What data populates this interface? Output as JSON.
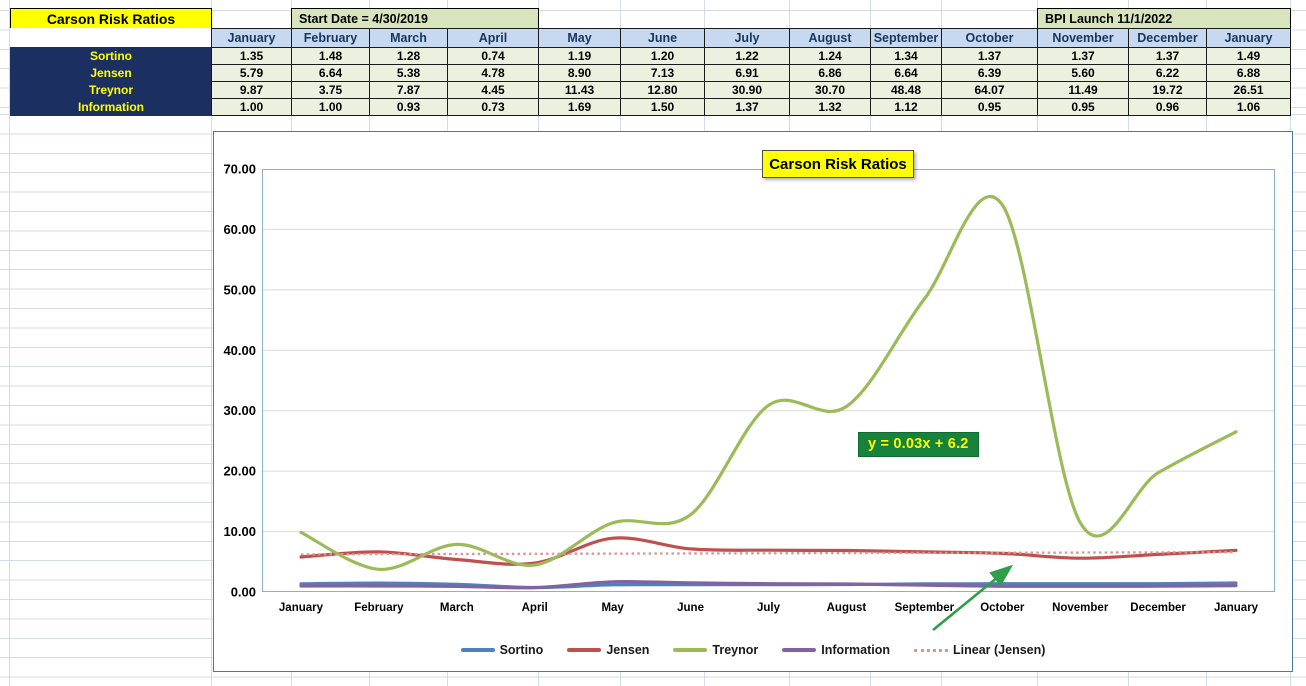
{
  "sheet": {
    "title_cell": "Carson Risk Ratios",
    "start_date_cell": "Start Date = 4/30/2019",
    "bpi_launch_cell": "BPI Launch 11/1/2022",
    "months": [
      "January",
      "February",
      "March",
      "April",
      "May",
      "June",
      "July",
      "August",
      "September",
      "October",
      "November",
      "December",
      "January"
    ],
    "rows": [
      {
        "label": "Sortino",
        "values": [
          "1.35",
          "1.48",
          "1.28",
          "0.74",
          "1.19",
          "1.20",
          "1.22",
          "1.24",
          "1.34",
          "1.37",
          "1.37",
          "1.37",
          "1.49"
        ]
      },
      {
        "label": "Jensen",
        "values": [
          "5.79",
          "6.64",
          "5.38",
          "4.78",
          "8.90",
          "7.13",
          "6.91",
          "6.86",
          "6.64",
          "6.39",
          "5.60",
          "6.22",
          "6.88"
        ]
      },
      {
        "label": "Treynor",
        "values": [
          "9.87",
          "3.75",
          "7.87",
          "4.45",
          "11.43",
          "12.80",
          "30.90",
          "30.70",
          "48.48",
          "64.07",
          "11.49",
          "19.72",
          "26.51"
        ]
      },
      {
        "label": "Information",
        "values": [
          "1.00",
          "1.00",
          "0.93",
          "0.73",
          "1.69",
          "1.50",
          "1.37",
          "1.32",
          "1.12",
          "0.95",
          "0.95",
          "0.96",
          "1.06"
        ]
      }
    ],
    "colors": {
      "header_bg": "#C6D9F0",
      "header_text": "#17365D",
      "label_bg": "#1B3060",
      "label_text": "#FFFF00",
      "cell_bg": "#EBF1DE",
      "title_bg": "#FFFF00",
      "banner_bg": "#D7E4BC"
    }
  },
  "chart_data": {
    "type": "line",
    "title": "Carson Risk Ratios",
    "categories": [
      "January",
      "February",
      "March",
      "April",
      "May",
      "June",
      "July",
      "August",
      "September",
      "October",
      "November",
      "December",
      "January"
    ],
    "series": [
      {
        "name": "Sortino",
        "color": "#4F81BD",
        "values": [
          1.35,
          1.48,
          1.28,
          0.74,
          1.19,
          1.2,
          1.22,
          1.24,
          1.34,
          1.37,
          1.37,
          1.37,
          1.49
        ]
      },
      {
        "name": "Jensen",
        "color": "#C0504D",
        "values": [
          5.79,
          6.64,
          5.38,
          4.78,
          8.9,
          7.13,
          6.91,
          6.86,
          6.64,
          6.39,
          5.6,
          6.22,
          6.88
        ]
      },
      {
        "name": "Treynor",
        "color": "#9BBB59",
        "values": [
          9.87,
          3.75,
          7.87,
          4.45,
          11.43,
          12.8,
          30.9,
          30.7,
          48.48,
          64.07,
          11.49,
          19.72,
          26.51
        ]
      },
      {
        "name": "Information",
        "color": "#8064A2",
        "values": [
          1.0,
          1.0,
          0.93,
          0.73,
          1.69,
          1.5,
          1.37,
          1.32,
          1.12,
          0.95,
          0.95,
          0.96,
          1.06
        ]
      }
    ],
    "trendline": {
      "name": "Linear (Jensen)",
      "color": "#D99694",
      "style": "dotted",
      "slope": 0.03,
      "intercept": 6.2
    },
    "annotation": {
      "text": "y = 0.03x + 6.2",
      "bg_color": "#17823C",
      "text_color": "#FFFF00",
      "arrow_color": "#2E9E48"
    },
    "ylim": [
      0,
      70
    ],
    "ytick_step": 10,
    "grid": true,
    "legend_position": "bottom",
    "smooth": true
  }
}
